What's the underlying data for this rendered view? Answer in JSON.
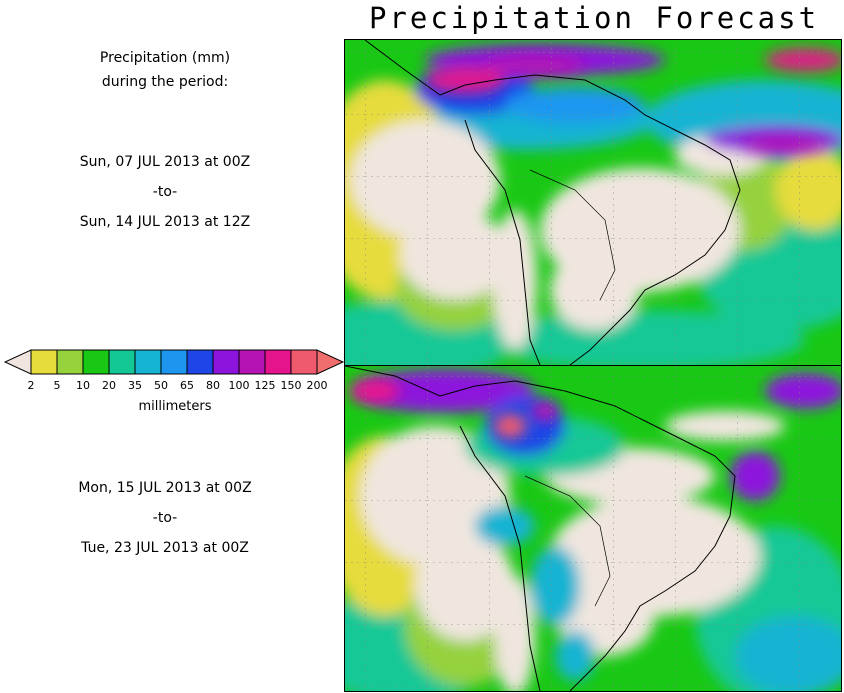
{
  "title": "Precipitation Forecast",
  "caption": {
    "line1": "Precipitation (mm)",
    "line2": "during the period:"
  },
  "period1": {
    "start": "Sun, 07 JUL 2013 at 00Z",
    "sep": "-to-",
    "end": "Sun, 14 JUL 2013 at 12Z"
  },
  "period2": {
    "start": "Mon, 15 JUL 2013 at 00Z",
    "sep": "-to-",
    "end": "Tue, 23 JUL 2013 at 00Z"
  },
  "legend": {
    "units": "millimeters",
    "levels": [
      "2",
      "5",
      "10",
      "20",
      "35",
      "50",
      "65",
      "80",
      "100",
      "125",
      "150",
      "200"
    ],
    "colors": [
      "#f0e6df",
      "#e6dc3c",
      "#95d23c",
      "#19c814",
      "#14c896",
      "#14b4d2",
      "#1e96f0",
      "#1e46e6",
      "#8c14dc",
      "#b414b4",
      "#e6148c",
      "#f05a6e",
      "#f06e6e"
    ]
  },
  "maps": [
    {
      "name": "week-1"
    },
    {
      "name": "week-2"
    }
  ]
}
